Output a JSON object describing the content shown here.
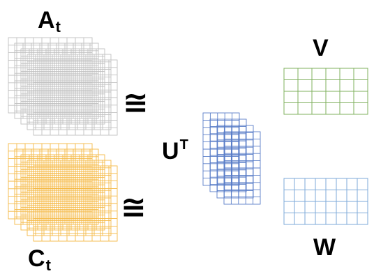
{
  "labels": {
    "a": {
      "main": "A",
      "sub": "t"
    },
    "c": {
      "main": "C",
      "sub": "t"
    },
    "u": {
      "main": "U",
      "sup": "T"
    },
    "v": "V",
    "w": "W"
  },
  "symbols": {
    "approx_top": "≅",
    "approx_bottom": "≅"
  },
  "colors": {
    "a_grid": "#c0c0c0",
    "c_grid": "#f5b945",
    "u_grid": "#5a7ec8",
    "v_grid": "#7fb05e",
    "w_grid": "#7eaad8"
  }
}
